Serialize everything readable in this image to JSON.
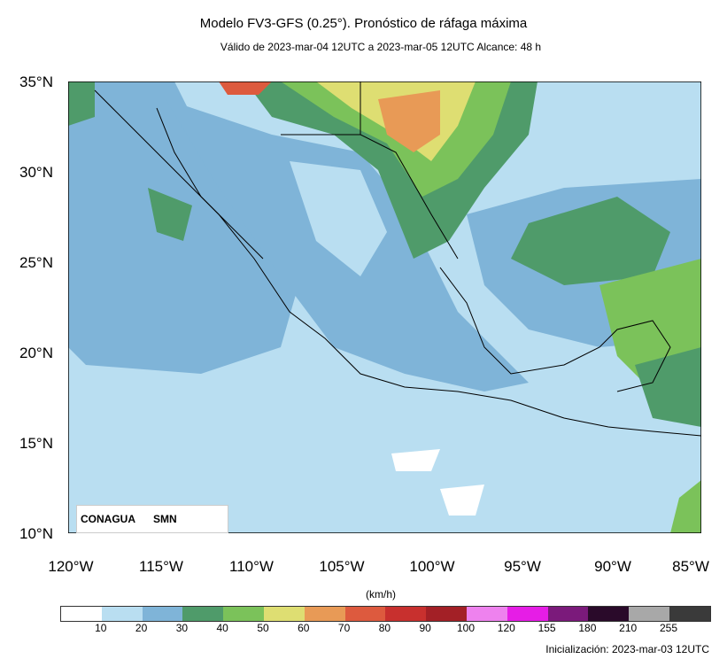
{
  "header": {
    "title": "Modelo FV3-GFS (0.25°). Pronóstico de ráfaga máxima",
    "subtitle": "Válido de 2023-mar-04 12UTC a 2023-mar-05 12UTC    Alcance: 48 h"
  },
  "axes": {
    "lat_labels": [
      "35°N",
      "30°N",
      "25°N",
      "20°N",
      "15°N",
      "10°N"
    ],
    "lon_labels": [
      "120°W",
      "115°W",
      "110°W",
      "105°W",
      "100°W",
      "95°W",
      "90°W",
      "85°W"
    ]
  },
  "legend": {
    "unit": "(km/h)",
    "ticks": [
      "10",
      "20",
      "30",
      "40",
      "50",
      "60",
      "70",
      "80",
      "90",
      "100",
      "120",
      "155",
      "180",
      "210",
      "255"
    ],
    "colors": [
      "#ffffff",
      "#b9def1",
      "#7fb4d8",
      "#4f9b6a",
      "#7bc25a",
      "#dede72",
      "#e89a56",
      "#dd5a3e",
      "#c8302e",
      "#a32026",
      "#ee82ee",
      "#e61de6",
      "#7b1a7b",
      "#2a0a2a",
      "#a8a8a8",
      "#3a3a3a"
    ]
  },
  "footer": {
    "init": "Inicialización: 2023-mar-03 12UTC",
    "logo1": "CONAGUA",
    "logo2": "SMN"
  }
}
